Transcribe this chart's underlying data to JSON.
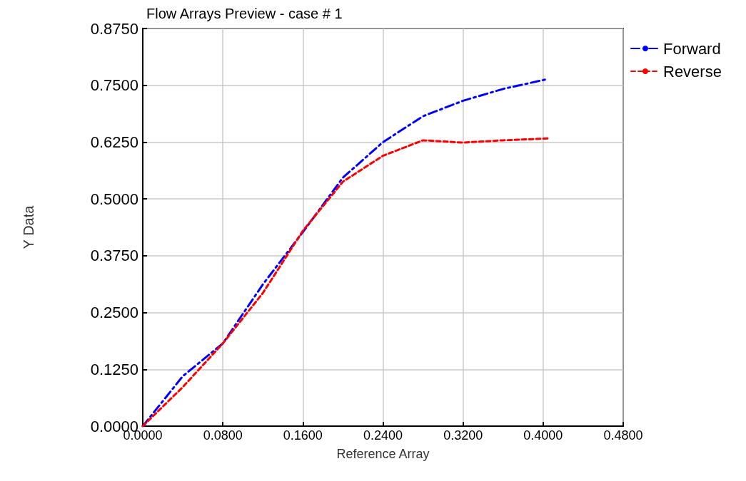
{
  "chart_data": {
    "type": "line",
    "title": "Flow Arrays Preview - case # 1",
    "xlabel": "Reference Array",
    "ylabel": "Y Data",
    "x": [
      0,
      0.04,
      0.08,
      0.12,
      0.16,
      0.2,
      0.24,
      0.28,
      0.32,
      0.36,
      0.405
    ],
    "series": [
      {
        "name": "Forward",
        "color": "#0000ff",
        "line_style": "dashed",
        "values": [
          0,
          0.11,
          0.182,
          0.312,
          0.427,
          0.547,
          0.625,
          0.682,
          0.716,
          0.742,
          0.764
        ]
      },
      {
        "name": "Reverse",
        "color": "#ff0000",
        "line_style": "dotted",
        "values": [
          0,
          0.086,
          0.182,
          0.293,
          0.43,
          0.538,
          0.595,
          0.629,
          0.624,
          0.629,
          0.633
        ]
      }
    ],
    "xlim": [
      0,
      0.48
    ],
    "xticks": [
      {
        "value": 0,
        "label": "0.0000"
      },
      {
        "value": 0.08,
        "label": "0.0800"
      },
      {
        "value": 0.16,
        "label": "0.1600"
      },
      {
        "value": 0.24,
        "label": "0.2400"
      },
      {
        "value": 0.32,
        "label": "0.3200"
      },
      {
        "value": 0.4,
        "label": "0.4000"
      },
      {
        "value": 0.48,
        "label": "0.4800"
      }
    ],
    "ylim": [
      0,
      0.875
    ],
    "yticks": [
      {
        "value": 0,
        "label": "0.0000"
      },
      {
        "value": 0.125,
        "label": "0.1250"
      },
      {
        "value": 0.25,
        "label": "0.2500"
      },
      {
        "value": 0.375,
        "label": "0.3750"
      },
      {
        "value": 0.5,
        "label": "0.5000"
      },
      {
        "value": 0.625,
        "label": "0.6250"
      },
      {
        "value": 0.75,
        "label": "0.7500"
      },
      {
        "value": 0.875,
        "label": "0.8750"
      }
    ],
    "grid": true,
    "legend": "top right",
    "marker": "none"
  }
}
